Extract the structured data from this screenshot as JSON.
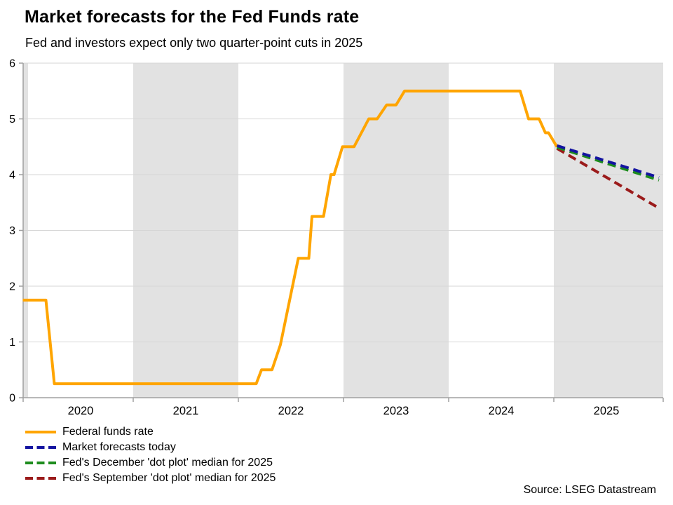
{
  "chart_data": {
    "type": "line",
    "title": "Market forecasts for the Fed Funds rate",
    "subtitle": "Fed and investors expect only two quarter-point cuts in 2025",
    "source": "Source: LSEG Datastream",
    "xlabel": "",
    "ylabel": "",
    "ylim": [
      0,
      6
    ],
    "y_ticks": [
      0,
      1,
      2,
      3,
      4,
      5,
      6
    ],
    "x_year_labels": [
      2020,
      2021,
      2022,
      2023,
      2024,
      2025
    ],
    "x_tick_years": [
      2021,
      2022,
      2023,
      2024,
      2025
    ],
    "shaded_bands": [
      [
        2019.5,
        2020
      ],
      [
        2021,
        2022
      ],
      [
        2023,
        2024
      ],
      [
        2025,
        2026.1
      ]
    ],
    "grid": "horizontal gridlines at each integer",
    "legend_position": "below-chart-left",
    "series": [
      {
        "name": "Federal funds rate",
        "color": "#FFA500",
        "style": "solid",
        "points": [
          [
            2019.95,
            1.75
          ],
          [
            2020.17,
            1.75
          ],
          [
            2020.25,
            0.25
          ],
          [
            2022.17,
            0.25
          ],
          [
            2022.22,
            0.5
          ],
          [
            2022.32,
            0.5
          ],
          [
            2022.4,
            0.95
          ],
          [
            2022.57,
            2.5
          ],
          [
            2022.67,
            2.5
          ],
          [
            2022.7,
            3.25
          ],
          [
            2022.81,
            3.25
          ],
          [
            2022.88,
            4.0
          ],
          [
            2022.91,
            4.0
          ],
          [
            2022.99,
            4.5
          ],
          [
            2023.1,
            4.5
          ],
          [
            2023.24,
            5.0
          ],
          [
            2023.32,
            5.0
          ],
          [
            2023.41,
            5.25
          ],
          [
            2023.5,
            5.25
          ],
          [
            2023.58,
            5.5
          ],
          [
            2024.68,
            5.5
          ],
          [
            2024.76,
            5.0
          ],
          [
            2024.86,
            5.0
          ],
          [
            2024.92,
            4.75
          ],
          [
            2024.95,
            4.75
          ],
          [
            2025.03,
            4.5
          ]
        ]
      },
      {
        "name": "Fed's September 'dot plot' median for 2025",
        "color": "#9B1B1B",
        "style": "dashed",
        "points": [
          [
            2025.03,
            4.47
          ],
          [
            2026.0,
            3.4
          ]
        ]
      },
      {
        "name": "Fed's December 'dot plot' median for 2025",
        "color": "#1E8C1E",
        "style": "dashed",
        "points": [
          [
            2025.03,
            4.49
          ],
          [
            2026.0,
            3.9
          ]
        ]
      },
      {
        "name": "Market forecasts today",
        "color": "#1414A0",
        "style": "dashed",
        "points": [
          [
            2025.03,
            4.52
          ],
          [
            2026.0,
            3.95
          ]
        ]
      }
    ],
    "legend": [
      {
        "label": "Federal funds rate",
        "color": "#FFA500",
        "style": "solid"
      },
      {
        "label": "Market forecasts today",
        "color": "#1414A0",
        "style": "dashed"
      },
      {
        "label": "Fed's December 'dot plot' median for 2025",
        "color": "#1E8C1E",
        "style": "dashed"
      },
      {
        "label": "Fed's September 'dot plot' median for 2025",
        "color": "#9B1B1B",
        "style": "dashed"
      }
    ]
  },
  "colors": {
    "band": "#E2E2E2",
    "gridline": "#D6D6D6",
    "axis": "#A0A0A0",
    "text": "#000000"
  }
}
